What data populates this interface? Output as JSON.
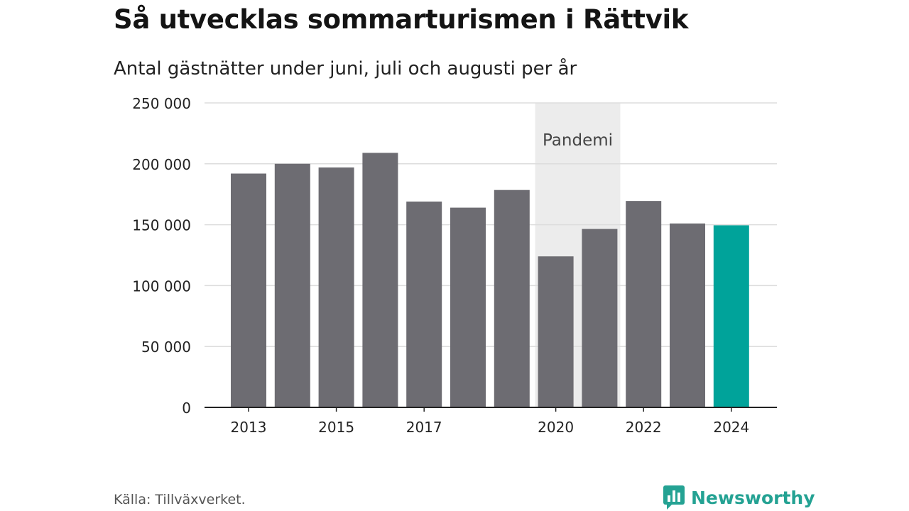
{
  "header": {
    "title": "Så utvecklas sommarturismen i Rättvik",
    "subtitle": "Antal gästnätter under juni, juli och augusti per år"
  },
  "chart_data": {
    "type": "bar",
    "categories": [
      "2013",
      "2014",
      "2015",
      "2016",
      "2017",
      "2018",
      "2019",
      "2020",
      "2021",
      "2022",
      "2023",
      "2024"
    ],
    "values": [
      192000,
      200000,
      197000,
      209000,
      169000,
      164000,
      178500,
      124000,
      146500,
      169500,
      151000,
      149500
    ],
    "x_tick_labels": [
      "2013",
      "",
      "2015",
      "",
      "2017",
      "",
      "",
      "2020",
      "",
      "2022",
      "",
      "2024"
    ],
    "y_ticks": [
      0,
      50000,
      100000,
      150000,
      200000,
      250000
    ],
    "y_tick_labels": [
      "0",
      "50 000",
      "100 000",
      "150 000",
      "200 000",
      "250 000"
    ],
    "ylim": [
      0,
      250000
    ],
    "grid": true,
    "highlight_category": "2024",
    "colors": {
      "bar": "#6d6c72",
      "highlight": "#00a39a",
      "band": "#ececec",
      "grid": "#dddddd",
      "axis": "#222222"
    },
    "annotation": {
      "label": "Pandemi",
      "from": "2020",
      "to": "2021"
    }
  },
  "footer": {
    "source": "Källa: Tillväxverket.",
    "brand": "Newsworthy",
    "brand_icon": "newsworthy-logo-icon"
  }
}
